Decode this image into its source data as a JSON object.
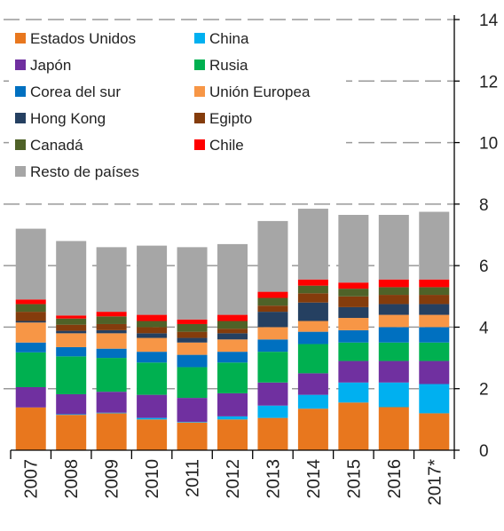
{
  "chart_data": {
    "type": "stacked_bar",
    "categories": [
      "2007",
      "2008",
      "2009",
      "2010",
      "2011",
      "2012",
      "2013",
      "2014",
      "2015",
      "2016",
      "2017*"
    ],
    "series": [
      {
        "name": "Estados Unidos",
        "color": "#e8771e",
        "values": [
          1.39,
          1.15,
          1.2,
          1.0,
          0.9,
          1.0,
          1.05,
          1.35,
          1.55,
          1.4,
          1.2
        ]
      },
      {
        "name": "China",
        "color": "#00b0f0",
        "values": [
          0,
          0.02,
          0.02,
          0.05,
          0.02,
          0.1,
          0.4,
          0.45,
          0.65,
          0.8,
          0.95
        ]
      },
      {
        "name": "Japón",
        "color": "#7030a0",
        "values": [
          0.66,
          0.65,
          0.68,
          0.75,
          0.78,
          0.75,
          0.75,
          0.7,
          0.7,
          0.7,
          0.75
        ]
      },
      {
        "name": "Rusia",
        "color": "#00b050",
        "values": [
          1.13,
          1.23,
          1.1,
          1.05,
          1.0,
          1.0,
          1.0,
          0.95,
          0.6,
          0.6,
          0.6
        ]
      },
      {
        "name": "Corea del sur",
        "color": "#0070c0",
        "values": [
          0.32,
          0.3,
          0.3,
          0.35,
          0.4,
          0.35,
          0.4,
          0.4,
          0.4,
          0.5,
          0.5
        ]
      },
      {
        "name": "Unión Europea",
        "color": "#f79646",
        "values": [
          0.65,
          0.45,
          0.5,
          0.45,
          0.4,
          0.4,
          0.4,
          0.35,
          0.4,
          0.4,
          0.4
        ]
      },
      {
        "name": "Hong Kong",
        "color": "#254061",
        "values": [
          0.05,
          0.08,
          0.1,
          0.15,
          0.15,
          0.2,
          0.5,
          0.6,
          0.35,
          0.35,
          0.35
        ]
      },
      {
        "name": "Egipto",
        "color": "#843c0c",
        "values": [
          0.3,
          0.2,
          0.2,
          0.2,
          0.2,
          0.15,
          0.2,
          0.3,
          0.35,
          0.3,
          0.3
        ]
      },
      {
        "name": "Canadá",
        "color": "#4f6228",
        "values": [
          0.25,
          0.2,
          0.25,
          0.2,
          0.25,
          0.25,
          0.25,
          0.25,
          0.25,
          0.25,
          0.25
        ]
      },
      {
        "name": "Chile",
        "color": "#ff0000",
        "values": [
          0.15,
          0.1,
          0.15,
          0.2,
          0.15,
          0.2,
          0.2,
          0.2,
          0.2,
          0.25,
          0.25
        ]
      },
      {
        "name": "Resto de países",
        "color": "#a6a6a6",
        "values": [
          2.3,
          2.42,
          2.1,
          2.25,
          2.35,
          2.3,
          2.3,
          2.3,
          2.2,
          2.1,
          2.2
        ]
      }
    ],
    "ylim": [
      0,
      14
    ],
    "yticks": [
      0,
      2,
      4,
      6,
      8,
      10,
      12,
      14
    ],
    "grid": true,
    "legend": "upper left",
    "y_axis_side": "right"
  }
}
